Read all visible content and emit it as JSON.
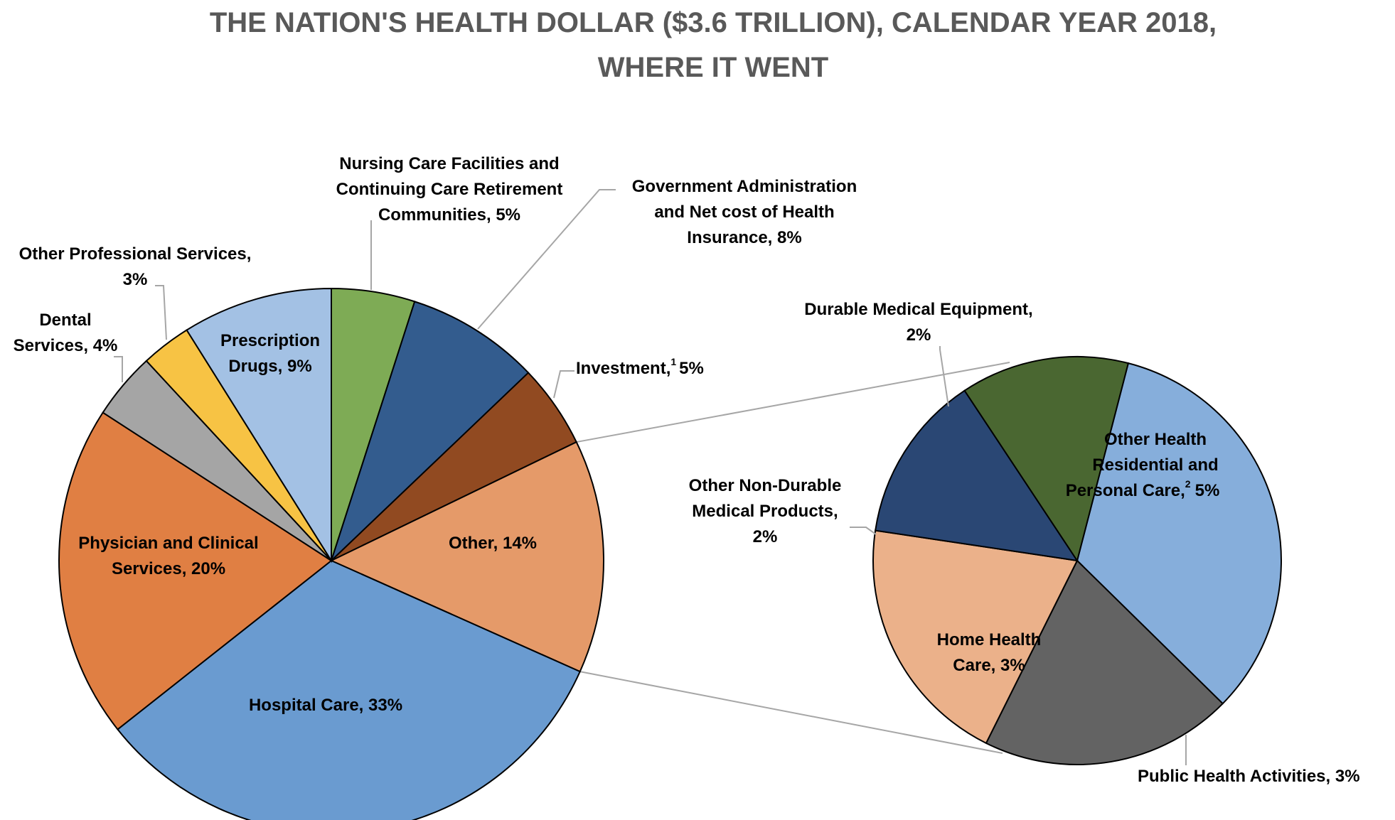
{
  "chart_data": {
    "type": "pie-of-pie",
    "title_lines": [
      "THE NATION'S HEALTH DOLLAR ($3.6 TRILLION), CALENDAR YEAR 2018,",
      "WHERE IT WENT"
    ],
    "main_pie": {
      "slices": [
        {
          "key": "hospital",
          "label_lines": [
            "Hospital Care, 33%"
          ],
          "value": 33,
          "color": "#6A9BD0"
        },
        {
          "key": "physician",
          "label_lines": [
            "Physician and Clinical",
            "Services, 20%"
          ],
          "value": 20,
          "color": "#E07F43"
        },
        {
          "key": "dental",
          "label_lines": [
            "Dental",
            "Services, 4%"
          ],
          "value": 4,
          "color": "#A5A5A5"
        },
        {
          "key": "other_prof",
          "label_lines": [
            "Other Professional Services,",
            "3%"
          ],
          "value": 3,
          "color": "#F7C344"
        },
        {
          "key": "rx",
          "label_lines": [
            "Prescription",
            "Drugs, 9%"
          ],
          "value": 9,
          "color": "#A3C1E4"
        },
        {
          "key": "nursing",
          "label_lines": [
            "Nursing Care Facilities and",
            "Continuing Care Retirement",
            "Communities, 5%"
          ],
          "value": 5,
          "color": "#7EAB55"
        },
        {
          "key": "gov_admin",
          "label_lines": [
            "Government Administration",
            "and Net cost of Health",
            "Insurance, 8%"
          ],
          "value": 8,
          "color": "#335C8E"
        },
        {
          "key": "investment",
          "label_lines": [
            "Investment,",
            "5%"
          ],
          "footnote": "1",
          "value": 5,
          "color": "#914A21"
        },
        {
          "key": "other",
          "label_lines": [
            "Other, 14%"
          ],
          "value": 14,
          "color": "#E59A69"
        }
      ]
    },
    "secondary_pie": {
      "total": 14,
      "slices": [
        {
          "key": "other_res",
          "label_lines": [
            "Other Health",
            "Residential and",
            "Personal Care,",
            "5%"
          ],
          "footnote": "2",
          "value": 5,
          "color": "#86AEDB"
        },
        {
          "key": "public_health",
          "label_lines": [
            "Public Health Activities, 3%"
          ],
          "value": 3,
          "color": "#636363"
        },
        {
          "key": "home_health",
          "label_lines": [
            "Home Health",
            "Care, 3%"
          ],
          "value": 3,
          "color": "#EBB18A"
        },
        {
          "key": "other_nondurable",
          "label_lines": [
            "Other Non-Durable",
            "Medical Products,",
            "2%"
          ],
          "value": 2,
          "color": "#2A4774"
        },
        {
          "key": "durable",
          "label_lines": [
            "Durable Medical Equipment,",
            "2%"
          ],
          "value": 2,
          "color": "#4A6731"
        }
      ]
    }
  }
}
